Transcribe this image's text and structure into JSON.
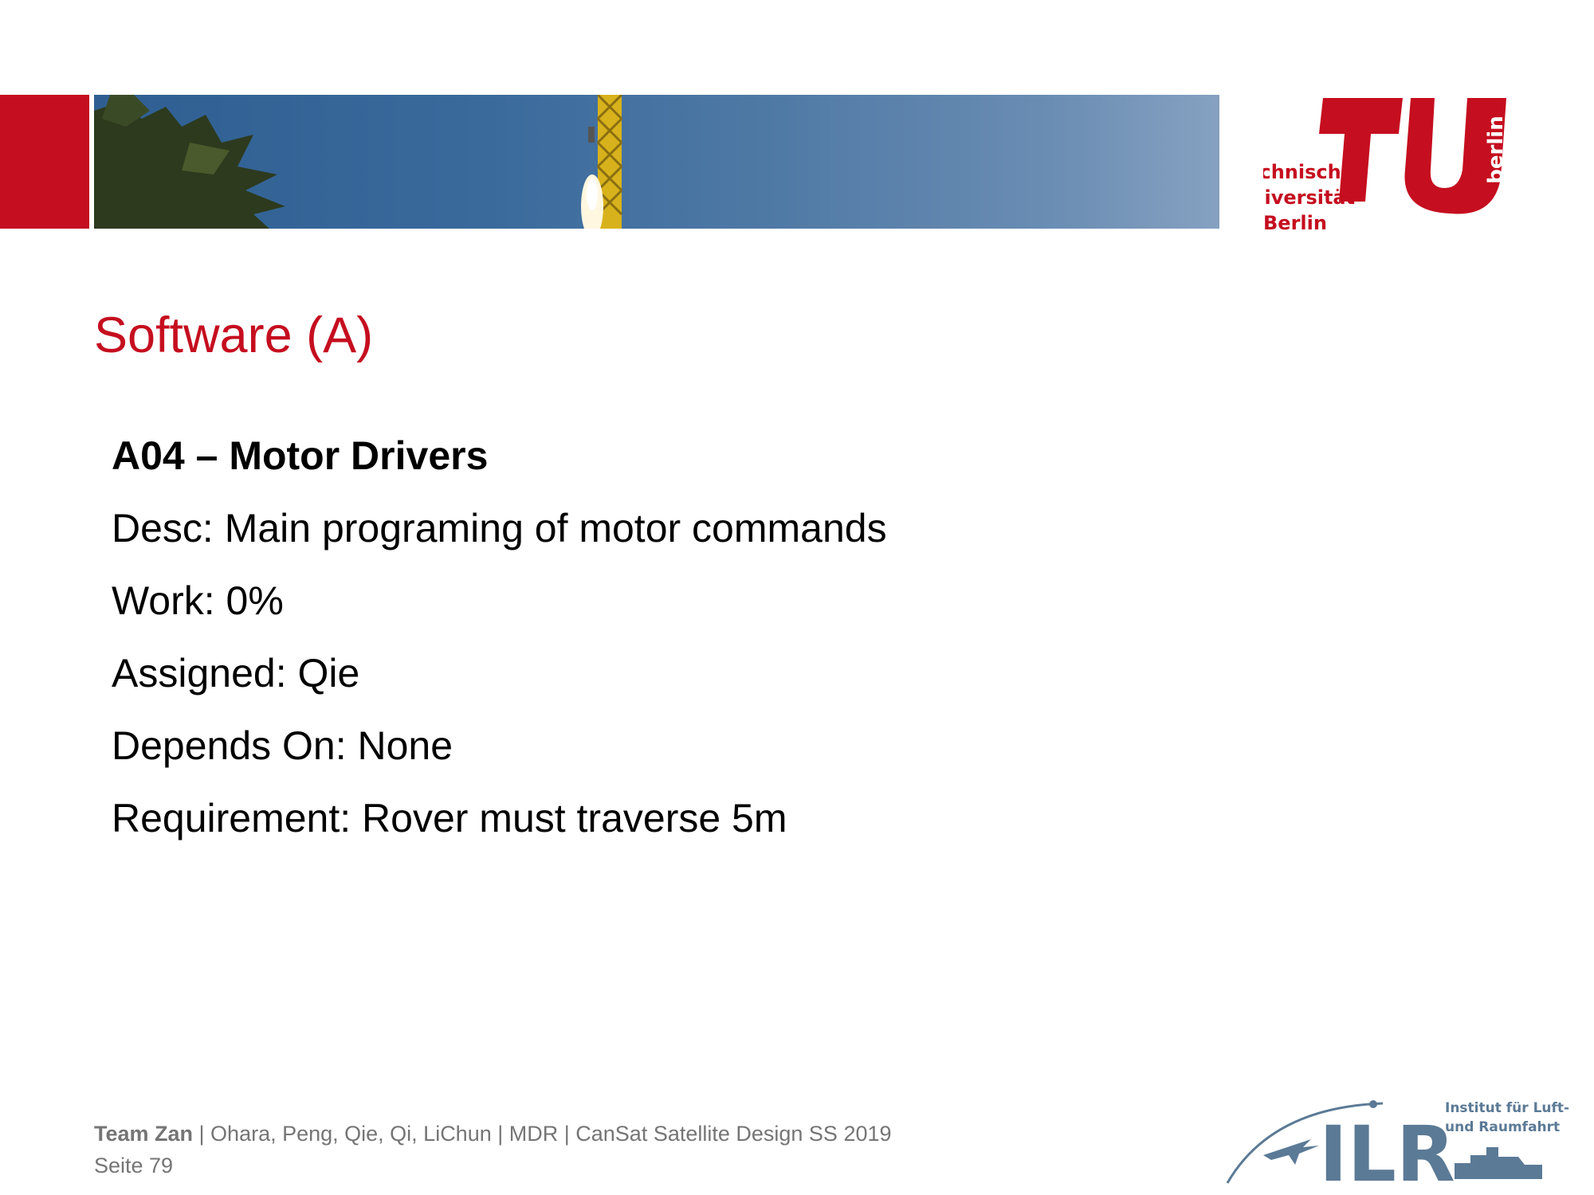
{
  "header": {
    "logo_lines": [
      "Technische",
      "Universität",
      "Berlin"
    ],
    "logo_side_text": "berlin",
    "brand_color": "#c50e1f",
    "banner_image": "rocket-launch-photo"
  },
  "slide": {
    "title": "Software (A)",
    "heading": "A04 – Motor Drivers",
    "lines": [
      "Desc: Main programing of motor commands",
      "Work: 0%",
      "Assigned: Qie",
      "Depends On: None",
      "Requirement: Rover must traverse 5m"
    ]
  },
  "footer": {
    "team": "Team Zan",
    "details": " | Ohara, Peng, Qie, Qi, LiChun | MDR | CanSat Satellite Design SS 2019",
    "page": "Seite 79"
  },
  "ilr_logo": {
    "letters": "ILR",
    "caption_lines": [
      "Institut für Luft-",
      "und Raumfahrt"
    ],
    "color": "#5b7a96"
  }
}
